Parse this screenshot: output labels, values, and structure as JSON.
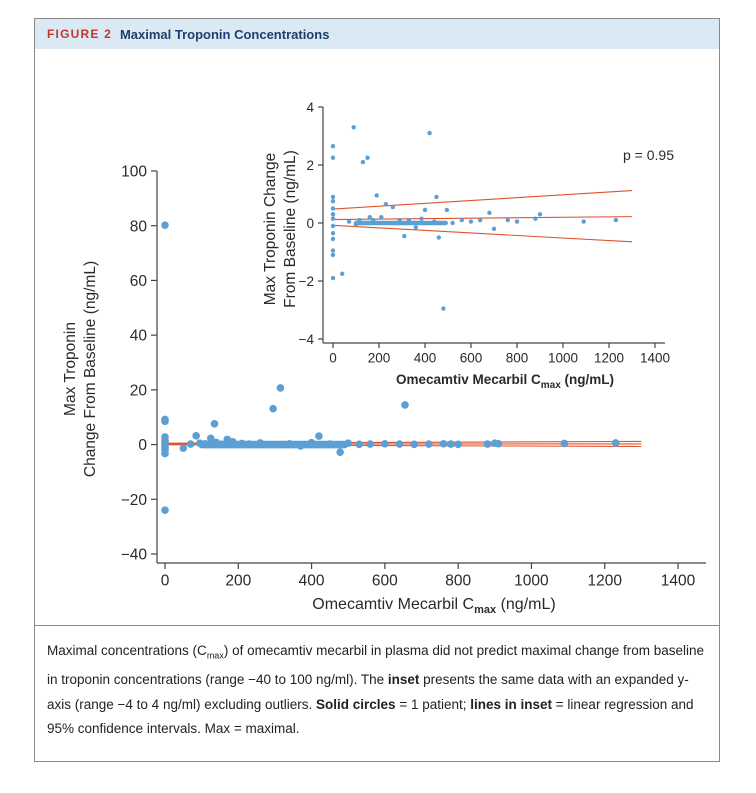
{
  "figure": {
    "label": "FIGURE 2",
    "title": "Maximal Troponin Concentrations"
  },
  "caption": {
    "part1": "Maximal concentrations (C",
    "sub1": "max",
    "part2": ") of omecamtiv mecarbil in plasma did not predict maximal change from baseline in troponin concentrations (range −40 to 100 ng/ml). The ",
    "bold1": "inset",
    "part3": " presents the same data with an expanded y-axis (range −4 to 4 ng/ml) excluding outliers. ",
    "bold2": "Solid circles",
    "part4": " = 1 patient; ",
    "bold3": "lines in inset",
    "part5": " = linear regression and 95% confidence intervals. Max = maximal."
  },
  "colors": {
    "points": "#5b9fd4",
    "lines": "#e0532e",
    "axis": "#444444",
    "header_bg": "#dbe9f5",
    "header_label": "#c0392b",
    "header_title": "#1e3f6e"
  },
  "chart_data": [
    {
      "type": "scatter",
      "name": "main",
      "xlabel": "Omecamtiv Mecarbil C",
      "xlabel_sub": "max",
      "xlabel_unit": " (ng/mL)",
      "ylabel_line1": "Max Troponin",
      "ylabel_line2": "Change From Baseline (ng/mL)",
      "xlim": [
        0,
        1400
      ],
      "ylim": [
        -40,
        100
      ],
      "xticks": [
        0,
        200,
        400,
        600,
        800,
        1000,
        1200,
        1400
      ],
      "yticks": [
        -40,
        -20,
        0,
        20,
        40,
        60,
        80,
        100
      ],
      "points": [
        [
          0,
          80.2
        ],
        [
          0,
          9.2
        ],
        [
          0,
          8.5
        ],
        [
          0,
          2.8
        ],
        [
          0,
          1.5
        ],
        [
          0,
          0.6
        ],
        [
          0,
          -0.5
        ],
        [
          0,
          -1.2
        ],
        [
          0,
          -2.1
        ],
        [
          0,
          -3.3
        ],
        [
          0,
          -24
        ],
        [
          50,
          -1.3
        ],
        [
          70,
          0.2
        ],
        [
          85,
          3.2
        ],
        [
          95,
          0.5
        ],
        [
          110,
          0.3
        ],
        [
          125,
          2.3
        ],
        [
          135,
          7.6
        ],
        [
          140,
          0.8
        ],
        [
          155,
          0.1
        ],
        [
          170,
          1.9
        ],
        [
          185,
          1.0
        ],
        [
          210,
          0.4
        ],
        [
          230,
          0.2
        ],
        [
          260,
          0.6
        ],
        [
          295,
          13.1
        ],
        [
          315,
          20.7
        ],
        [
          340,
          0.3
        ],
        [
          370,
          -0.5
        ],
        [
          400,
          0.7
        ],
        [
          420,
          3.1
        ],
        [
          450,
          0.2
        ],
        [
          478,
          -2.8
        ],
        [
          500,
          0.5
        ],
        [
          530,
          0.1
        ],
        [
          560,
          0.2
        ],
        [
          600,
          0.3
        ],
        [
          640,
          0.2
        ],
        [
          655,
          14.5
        ],
        [
          680,
          0.1
        ],
        [
          720,
          0.2
        ],
        [
          760,
          0.3
        ],
        [
          780,
          0.2
        ],
        [
          800,
          0.1
        ],
        [
          880,
          0.2
        ],
        [
          900,
          0.5
        ],
        [
          910,
          0.3
        ],
        [
          1090,
          0.4
        ],
        [
          1230,
          0.6
        ]
      ],
      "band_x": [
        90,
        500
      ],
      "regression": {
        "x": [
          0,
          1300
        ],
        "fit": [
          0.22,
          0.22
        ],
        "upper": [
          0.5,
          1.15
        ],
        "lower": [
          -0.05,
          -0.7
        ]
      }
    },
    {
      "type": "scatter",
      "name": "inset",
      "xlabel": "Omecamtiv Mecarbil C",
      "xlabel_sub": "max",
      "xlabel_unit": " (ng/mL)",
      "ylabel_line1": "Max Troponin Change",
      "ylabel_line2": "From Baseline (ng/mL)",
      "annotation": "p = 0.95",
      "xlim": [
        0,
        1400
      ],
      "ylim": [
        -4,
        4
      ],
      "xticks": [
        0,
        200,
        400,
        600,
        800,
        1000,
        1200,
        1400
      ],
      "yticks": [
        -4,
        -2,
        0,
        2,
        4
      ],
      "points": [
        [
          0,
          2.65
        ],
        [
          0,
          2.25
        ],
        [
          0,
          0.9
        ],
        [
          0,
          0.75
        ],
        [
          0,
          0.5
        ],
        [
          0,
          0.3
        ],
        [
          0,
          0.15
        ],
        [
          0,
          -0.1
        ],
        [
          0,
          -0.35
        ],
        [
          0,
          -0.55
        ],
        [
          0,
          -0.95
        ],
        [
          0,
          -1.1
        ],
        [
          0,
          -1.9
        ],
        [
          40,
          -1.75
        ],
        [
          70,
          0.05
        ],
        [
          90,
          3.3
        ],
        [
          100,
          -0.05
        ],
        [
          115,
          0.1
        ],
        [
          130,
          2.1
        ],
        [
          150,
          2.25
        ],
        [
          160,
          0.2
        ],
        [
          175,
          0.1
        ],
        [
          190,
          0.95
        ],
        [
          210,
          0.2
        ],
        [
          230,
          0.65
        ],
        [
          260,
          0.55
        ],
        [
          290,
          0.1
        ],
        [
          310,
          -0.45
        ],
        [
          330,
          0.1
        ],
        [
          360,
          -0.15
        ],
        [
          385,
          0.15
        ],
        [
          400,
          0.45
        ],
        [
          420,
          3.1
        ],
        [
          440,
          0.05
        ],
        [
          450,
          0.9
        ],
        [
          460,
          -0.5
        ],
        [
          480,
          -2.95
        ],
        [
          495,
          0.45
        ],
        [
          520,
          0.0
        ],
        [
          560,
          0.1
        ],
        [
          600,
          0.05
        ],
        [
          640,
          0.1
        ],
        [
          680,
          0.35
        ],
        [
          700,
          -0.2
        ],
        [
          760,
          0.1
        ],
        [
          800,
          0.05
        ],
        [
          880,
          0.15
        ],
        [
          900,
          0.3
        ],
        [
          1090,
          0.05
        ],
        [
          1230,
          0.1
        ]
      ],
      "band_x": [
        90,
        500
      ],
      "regression": {
        "x": [
          0,
          1300
        ],
        "fit": [
          0.12,
          0.22
        ],
        "upper": [
          0.48,
          1.12
        ],
        "lower": [
          -0.08,
          -0.65
        ]
      }
    }
  ]
}
